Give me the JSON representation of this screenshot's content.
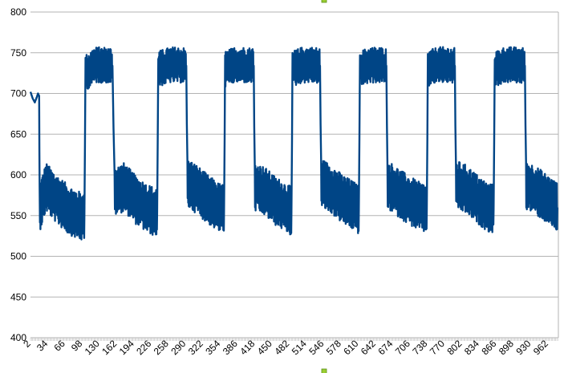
{
  "chart_data": {
    "type": "line",
    "title": "",
    "xlabel": "",
    "ylabel": "",
    "ylim": [
      400,
      800
    ],
    "yticks": [
      400,
      450,
      500,
      550,
      600,
      650,
      700,
      750,
      800
    ],
    "xlim": [
      1,
      980
    ],
    "xtick_labels": [
      "2",
      "34",
      "66",
      "98",
      "130",
      "162",
      "194",
      "226",
      "258",
      "290",
      "322",
      "354",
      "386",
      "418",
      "450",
      "482",
      "514",
      "546",
      "578",
      "610",
      "642",
      "674",
      "706",
      "738",
      "770",
      "802",
      "834",
      "866",
      "898",
      "930",
      "962"
    ],
    "grid": "horizontal",
    "legend": "none",
    "series": [
      {
        "color": "#004586",
        "description_points": [
          [
            1,
            702
          ],
          [
            5,
            694
          ],
          [
            9,
            689
          ],
          [
            13,
            696
          ],
          [
            15,
            700
          ],
          [
            17,
            697
          ],
          [
            18,
            560
          ],
          [
            30,
            585
          ],
          [
            50,
            570
          ],
          [
            70,
            558
          ],
          [
            90,
            550
          ],
          [
            101,
            548
          ],
          [
            103,
            725
          ],
          [
            120,
            735
          ],
          [
            140,
            735
          ],
          [
            153,
            734
          ],
          [
            157,
            580
          ],
          [
            175,
            585
          ],
          [
            195,
            570
          ],
          [
            215,
            560
          ],
          [
            230,
            555
          ],
          [
            236,
            555
          ],
          [
            238,
            730
          ],
          [
            260,
            735
          ],
          [
            280,
            735
          ],
          [
            290,
            734
          ],
          [
            292,
            590
          ],
          [
            310,
            582
          ],
          [
            330,
            570
          ],
          [
            350,
            560
          ],
          [
            360,
            558
          ],
          [
            362,
            730
          ],
          [
            380,
            735
          ],
          [
            400,
            735
          ],
          [
            415,
            734
          ],
          [
            417,
            585
          ],
          [
            435,
            580
          ],
          [
            455,
            568
          ],
          [
            475,
            560
          ],
          [
            485,
            555
          ],
          [
            487,
            730
          ],
          [
            505,
            735
          ],
          [
            525,
            735
          ],
          [
            538,
            734
          ],
          [
            540,
            590
          ],
          [
            560,
            582
          ],
          [
            580,
            570
          ],
          [
            600,
            562
          ],
          [
            610,
            557
          ],
          [
            612,
            730
          ],
          [
            630,
            735
          ],
          [
            650,
            735
          ],
          [
            661,
            734
          ],
          [
            663,
            588
          ],
          [
            680,
            580
          ],
          [
            700,
            570
          ],
          [
            720,
            562
          ],
          [
            736,
            558
          ],
          [
            738,
            730
          ],
          [
            755,
            735
          ],
          [
            775,
            735
          ],
          [
            788,
            734
          ],
          [
            790,
            588
          ],
          [
            810,
            582
          ],
          [
            830,
            570
          ],
          [
            850,
            560
          ],
          [
            860,
            558
          ],
          [
            862,
            730
          ],
          [
            880,
            735
          ],
          [
            900,
            735
          ],
          [
            918,
            734
          ],
          [
            920,
            588
          ],
          [
            940,
            580
          ],
          [
            960,
            570
          ],
          [
            975,
            562
          ],
          [
            978,
            560
          ]
        ]
      }
    ]
  },
  "handles": [
    {
      "name": "top"
    },
    {
      "name": "bottom"
    }
  ]
}
